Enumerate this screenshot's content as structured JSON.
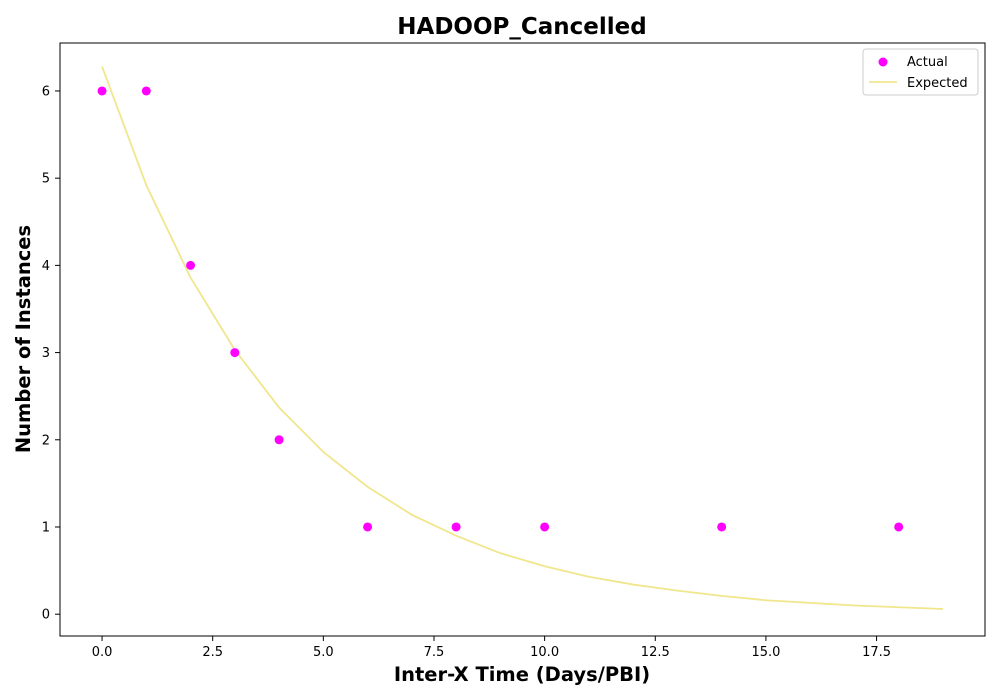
{
  "chart_data": {
    "type": "scatter",
    "title": "HADOOP_Cancelled",
    "xlabel": "Inter-X Time (Days/PBI)",
    "ylabel": "Number of Instances",
    "xlim": [
      -0.95,
      19.95
    ],
    "ylim": [
      -0.25,
      6.55
    ],
    "x_ticks": [
      0.0,
      2.5,
      5.0,
      7.5,
      10.0,
      12.5,
      15.0,
      17.5
    ],
    "x_tick_labels": [
      "0.0",
      "2.5",
      "5.0",
      "7.5",
      "10.0",
      "12.5",
      "15.0",
      "17.5"
    ],
    "y_ticks": [
      0,
      1,
      2,
      3,
      4,
      5,
      6
    ],
    "y_tick_labels": [
      "0",
      "1",
      "2",
      "3",
      "4",
      "5",
      "6"
    ],
    "grid": false,
    "legend": "top-right",
    "series": [
      {
        "name": "Actual",
        "kind": "scatter",
        "color": "#ff00ff",
        "x": [
          0,
          1,
          2,
          3,
          4,
          6,
          8,
          10,
          14,
          18
        ],
        "y": [
          6,
          6,
          4,
          3,
          2,
          1,
          1,
          1,
          1,
          1
        ]
      },
      {
        "name": "Expected",
        "kind": "line",
        "color": "#f0e68c",
        "x": [
          0,
          1,
          2,
          3,
          4,
          5,
          6,
          7,
          8,
          9,
          10,
          11,
          12,
          13,
          14,
          15,
          16,
          17,
          18,
          19
        ],
        "y": [
          6.28,
          4.92,
          3.86,
          3.03,
          2.37,
          1.86,
          1.46,
          1.14,
          0.9,
          0.7,
          0.55,
          0.43,
          0.34,
          0.27,
          0.21,
          0.16,
          0.13,
          0.1,
          0.08,
          0.06
        ]
      }
    ]
  }
}
